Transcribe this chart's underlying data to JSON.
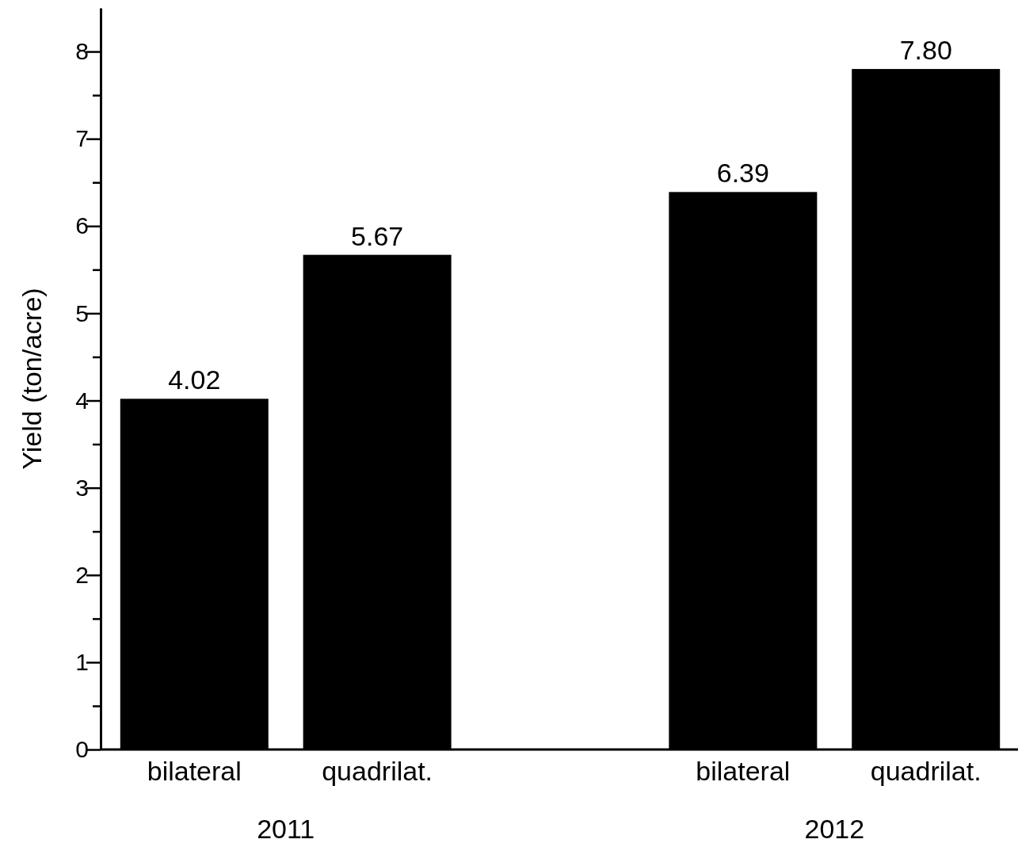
{
  "chart_data": {
    "type": "bar",
    "ylabel": "Yield (ton/acre)",
    "categories": [
      "bilateral",
      "quadrilat.",
      null,
      "bilateral",
      "quadrilat."
    ],
    "values": [
      4.02,
      5.67,
      null,
      6.39,
      7.8
    ],
    "value_labels": [
      "4.02",
      "5.67",
      null,
      "6.39",
      "7.80"
    ],
    "color": "#000000",
    "ylim": [
      0,
      8.5
    ],
    "yticks": [
      0,
      {
        "value": 0.5,
        "label": null
      },
      1,
      {
        "value": 1.5,
        "label": null
      },
      2,
      {
        "value": 2.5,
        "label": null
      },
      3,
      {
        "value": 3.5,
        "label": null
      },
      4,
      {
        "value": 4.5,
        "label": null
      },
      5,
      {
        "value": 5.5,
        "label": null
      },
      6,
      {
        "value": 6.5,
        "label": null
      },
      7,
      {
        "value": 7.5,
        "label": null
      },
      8
    ],
    "annotations": [
      "2011",
      "2012"
    ],
    "grid": false
  }
}
